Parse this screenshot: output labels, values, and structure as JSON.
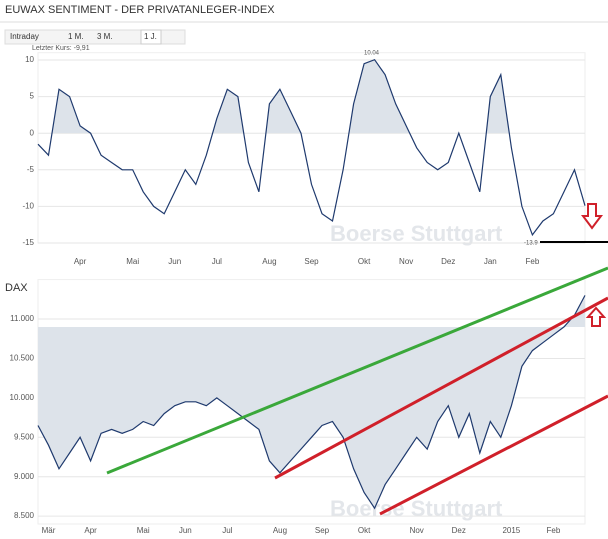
{
  "header": {
    "tabs": [
      "Intraday",
      "1 M.",
      "3 M.",
      "1 J."
    ]
  },
  "chart_data": [
    {
      "type": "line",
      "title": "EUWAX SENTIMENT - DER PRIVATANLEGER-INDEX",
      "annotations": [
        "Letzter Kurs: -9,91",
        "10.04",
        "-13.9"
      ],
      "watermark": "Boerse Stuttgart",
      "categories": [
        null,
        null,
        null,
        null,
        "Apr",
        null,
        null,
        null,
        null,
        "Mai",
        null,
        null,
        null,
        "Jun",
        null,
        null,
        null,
        "Jul",
        null,
        null,
        null,
        null,
        "Aug",
        null,
        null,
        null,
        "Sep",
        null,
        null,
        null,
        null,
        "Okt",
        null,
        null,
        null,
        "Nov",
        null,
        null,
        null,
        "Dez",
        null,
        null,
        null,
        "Jan",
        null,
        null,
        null,
        "Feb",
        null,
        null,
        null,
        null,
        null
      ],
      "values": [
        -1.5,
        -3,
        6,
        5,
        1,
        0,
        -3,
        -4,
        -5,
        -5,
        -8,
        -10,
        -11,
        -8,
        -5,
        -7,
        -3,
        2,
        6,
        5,
        -4,
        -8,
        4,
        6,
        3,
        0,
        -7,
        -11,
        -12,
        -5,
        4,
        9.5,
        10.04,
        8,
        4,
        1,
        -2,
        -4,
        -5,
        -4,
        0,
        -4,
        -8,
        5,
        8,
        -2,
        -10,
        -13.9,
        -12,
        -11,
        -8,
        -5,
        -9.91
      ],
      "color": "#1f3a6e",
      "fill": "#dde3ea",
      "ylim": [
        -15,
        11
      ],
      "yticks": [
        10,
        5,
        0,
        -5,
        -10,
        -15
      ],
      "grid": true
    },
    {
      "type": "line",
      "title": "DAX",
      "watermark": "Boerse Stuttgart",
      "categories": [
        null,
        "Mär",
        null,
        null,
        null,
        "Apr",
        null,
        null,
        null,
        null,
        "Mai",
        null,
        null,
        null,
        "Jun",
        null,
        null,
        null,
        "Jul",
        null,
        null,
        null,
        null,
        "Aug",
        null,
        null,
        null,
        "Sep",
        null,
        null,
        null,
        "Okt",
        null,
        null,
        null,
        null,
        "Nov",
        null,
        null,
        null,
        "Dez",
        null,
        null,
        null,
        null,
        "2015",
        null,
        null,
        null,
        "Feb",
        null,
        null,
        null
      ],
      "values": [
        9650,
        9400,
        9100,
        9300,
        9500,
        9200,
        9550,
        9600,
        9550,
        9600,
        9700,
        9650,
        9800,
        9900,
        9950,
        9950,
        9900,
        10000,
        9900,
        9800,
        9700,
        9600,
        9200,
        9050,
        9200,
        9350,
        9500,
        9650,
        9700,
        9500,
        9100,
        8800,
        8600,
        8900,
        9100,
        9300,
        9500,
        9350,
        9700,
        9900,
        9500,
        9800,
        9300,
        9700,
        9500,
        9900,
        10400,
        10600,
        10700,
        10800,
        10900,
        11050,
        11300
      ],
      "color": "#1f3a6e",
      "fill": "#dde3ea",
      "ylim": [
        8400,
        11500
      ],
      "yticks": [
        {
          "value": 11000,
          "label": "11.000"
        },
        {
          "value": 10500,
          "label": "10.500"
        },
        {
          "value": 10000,
          "label": "10.000"
        },
        {
          "value": 9500,
          "label": "9.500"
        },
        {
          "value": 9000,
          "label": "9.000"
        },
        {
          "value": 8500,
          "label": "8.500"
        }
      ],
      "grid": true
    }
  ]
}
